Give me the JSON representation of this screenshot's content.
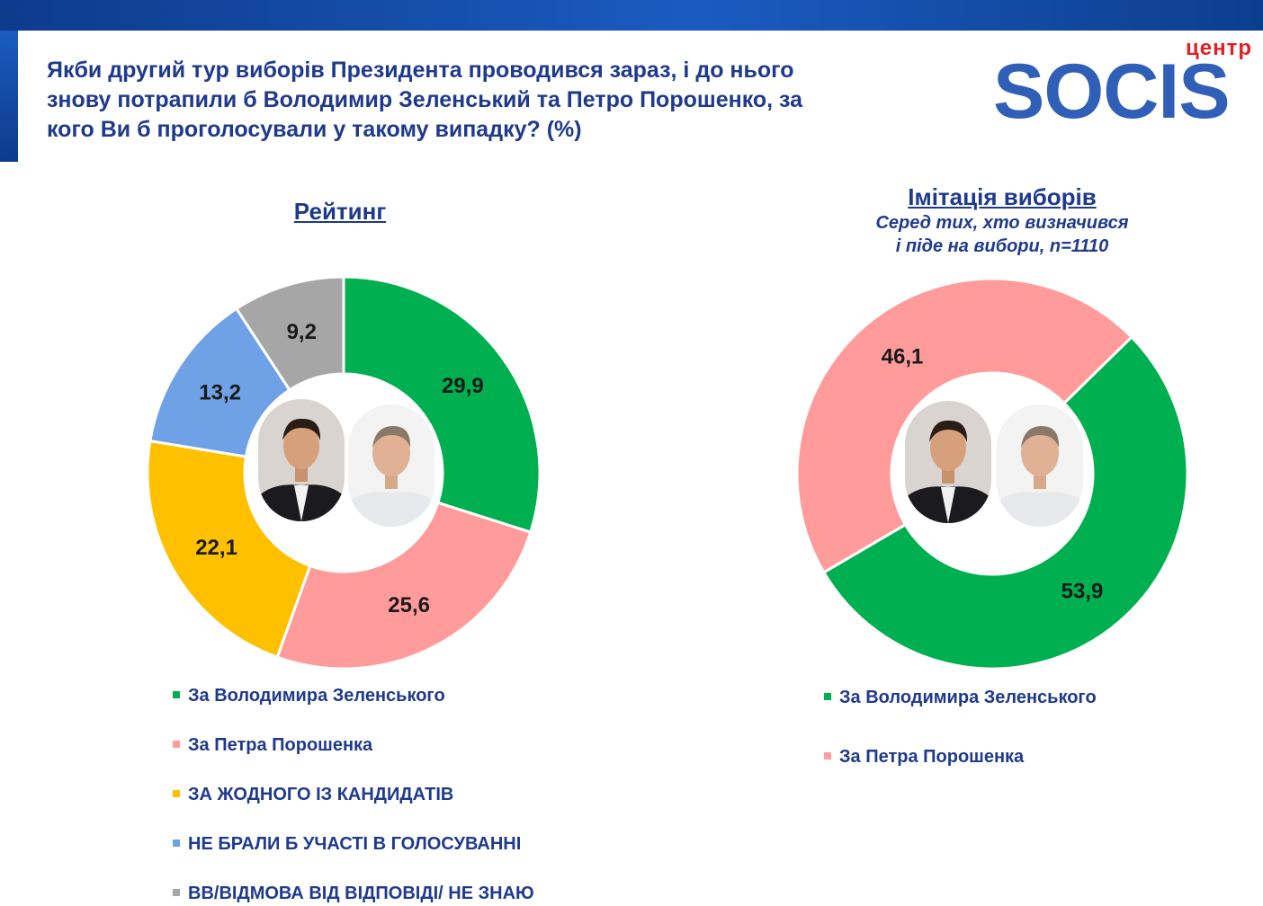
{
  "header": {
    "question_lines": [
      "Якби другий тур виборів Президента проводився зараз, і до нього",
      "знову потрапили б Володимир Зеленський та Петро Порошенко, за",
      "кого Ви б проголосували у такому випадку? (%)"
    ],
    "logo_top": "центр",
    "logo_word": "SOCIS"
  },
  "colors": {
    "zelensky": "#00b050",
    "poroshenko": "#ff9b9b",
    "none": "#ffc000",
    "not_voting": "#6fa1e6",
    "dk": "#a6a6a6",
    "heading": "#1f3a8c"
  },
  "left": {
    "title": "Рейтинг",
    "legend": [
      "За Володимира Зеленського",
      "За Петра Порошенка",
      "ЗА ЖОДНОГО ІЗ КАНДИДАТІВ",
      "НЕ БРАЛИ Б УЧАСТІ В ГОЛОСУВАННІ",
      "ВВ/ВІДМОВА ВІД ВІДПОВІДІ/ НЕ ЗНАЮ"
    ]
  },
  "right": {
    "title": "Імітація виборів",
    "subtitle_lines": [
      "Серед тих, хто визначився",
      "і піде на вибори, n=1110"
    ],
    "legend": [
      "За Володимира Зеленського",
      "За Петра Порошенка"
    ]
  },
  "chart_data": [
    {
      "type": "pie",
      "title": "Рейтинг",
      "donut": true,
      "categories": [
        "За Володимира Зеленського",
        "За Петра Порошенка",
        "ЗА ЖОДНОГО ІЗ КАНДИДАТІВ",
        "НЕ БРАЛИ Б УЧАСТІ В ГОЛОСУВАННІ",
        "ВВ/ВІДМОВА ВІД ВІДПОВІДІ/ НЕ ЗНАЮ"
      ],
      "values": [
        29.9,
        25.6,
        22.1,
        13.2,
        9.2
      ],
      "labels": [
        "29,9",
        "25,6",
        "22,1",
        "13,2",
        "9,2"
      ],
      "colors": [
        "#00b050",
        "#ff9b9b",
        "#ffc000",
        "#6fa1e6",
        "#a6a6a6"
      ],
      "legend_position": "bottom"
    },
    {
      "type": "pie",
      "title": "Імітація виборів",
      "donut": true,
      "categories": [
        "За Володимира Зеленського",
        "За Петра Порошенка"
      ],
      "values": [
        53.9,
        46.1
      ],
      "labels": [
        "53,9",
        "46,1"
      ],
      "colors": [
        "#00b050",
        "#ff9b9b"
      ],
      "legend_position": "bottom"
    }
  ]
}
